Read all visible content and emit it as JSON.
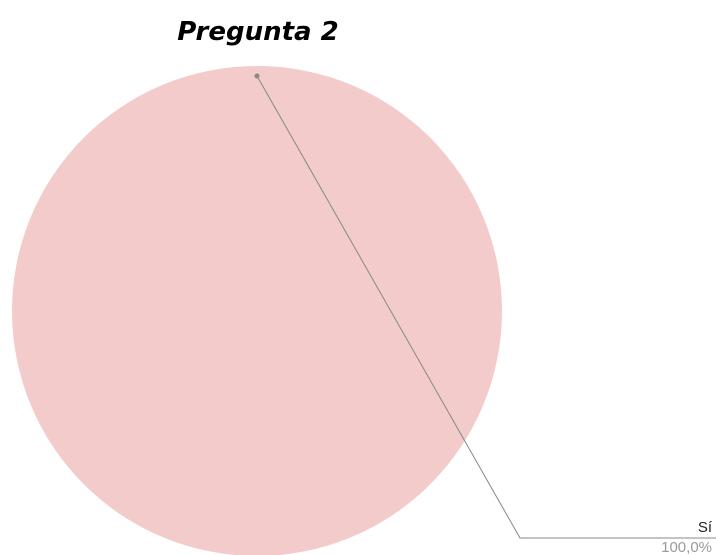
{
  "chart_data": {
    "type": "pie",
    "title": "Pregunta 2",
    "categories": [
      "Sí"
    ],
    "values": [
      100
    ],
    "value_labels": [
      "100,0%"
    ],
    "colors": [
      "#f2cbca"
    ]
  }
}
